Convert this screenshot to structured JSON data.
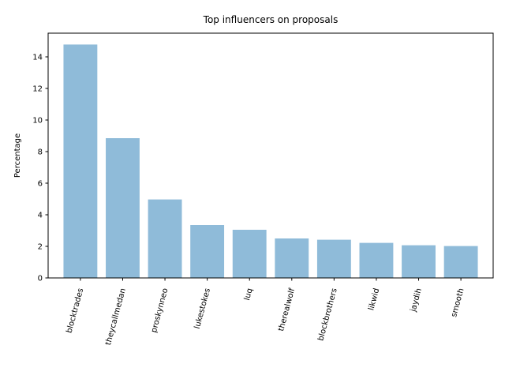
{
  "chart_data": {
    "type": "bar",
    "title": "Top influencers on proposals",
    "xlabel": "",
    "ylabel": "Percentage",
    "categories": [
      "blocktrades",
      "theycallmedan",
      "proskynneo",
      "lukestokes",
      "luq",
      "therealwolf",
      "blockbrothers",
      "likwid",
      "jaydih",
      "smooth"
    ],
    "values": [
      14.78,
      8.85,
      4.97,
      3.35,
      3.05,
      2.5,
      2.42,
      2.22,
      2.07,
      2.02
    ],
    "ylim": [
      0,
      15.5
    ],
    "yticks": [
      0,
      2,
      4,
      6,
      8,
      10,
      12,
      14
    ],
    "bar_color": "#8fbbd9",
    "grid": false,
    "xtick_rotation": 75
  }
}
